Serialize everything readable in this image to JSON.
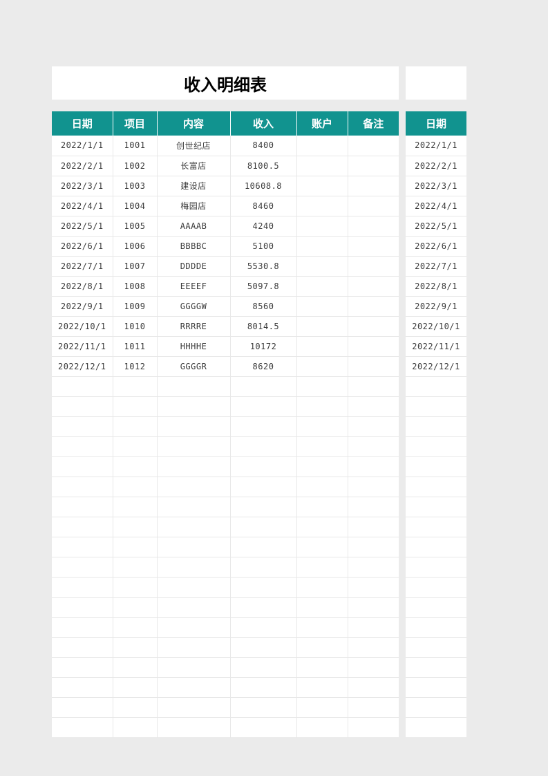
{
  "layout": {
    "page_bg": "#ebebeb",
    "panel_bg": "#ffffff",
    "header_bg": "#11938f",
    "header_text_color": "#ffffff",
    "cell_text_color": "#3a3a3a",
    "border_color": "#e8e8e8",
    "title_fontsize": 24,
    "header_fontsize": 15,
    "cell_fontsize": 12
  },
  "main": {
    "title": "收入明细表",
    "columns": [
      "日期",
      "项目",
      "内容",
      "收入",
      "账户",
      "备注"
    ],
    "rows": [
      [
        "2022/1/1",
        "1001",
        "创世纪店",
        "8400",
        "",
        ""
      ],
      [
        "2022/2/1",
        "1002",
        "长富店",
        "8100.5",
        "",
        ""
      ],
      [
        "2022/3/1",
        "1003",
        "建设店",
        "10608.8",
        "",
        ""
      ],
      [
        "2022/4/1",
        "1004",
        "梅园店",
        "8460",
        "",
        ""
      ],
      [
        "2022/5/1",
        "1005",
        "AAAAB",
        "4240",
        "",
        ""
      ],
      [
        "2022/6/1",
        "1006",
        "BBBBC",
        "5100",
        "",
        ""
      ],
      [
        "2022/7/1",
        "1007",
        "DDDDE",
        "5530.8",
        "",
        ""
      ],
      [
        "2022/8/1",
        "1008",
        "EEEEF",
        "5097.8",
        "",
        ""
      ],
      [
        "2022/9/1",
        "1009",
        "GGGGW",
        "8560",
        "",
        ""
      ],
      [
        "2022/10/1",
        "1010",
        "RRRRE",
        "8014.5",
        "",
        ""
      ],
      [
        "2022/11/1",
        "1011",
        "HHHHE",
        "10172",
        "",
        ""
      ],
      [
        "2022/12/1",
        "1012",
        "GGGGR",
        "8620",
        "",
        ""
      ]
    ],
    "empty_rows": 18
  },
  "aux": {
    "columns": [
      "日期"
    ],
    "rows": [
      [
        "2022/1/1"
      ],
      [
        "2022/2/1"
      ],
      [
        "2022/3/1"
      ],
      [
        "2022/4/1"
      ],
      [
        "2022/5/1"
      ],
      [
        "2022/6/1"
      ],
      [
        "2022/7/1"
      ],
      [
        "2022/8/1"
      ],
      [
        "2022/9/1"
      ],
      [
        "2022/10/1"
      ],
      [
        "2022/11/1"
      ],
      [
        "2022/12/1"
      ]
    ],
    "empty_rows": 18
  }
}
